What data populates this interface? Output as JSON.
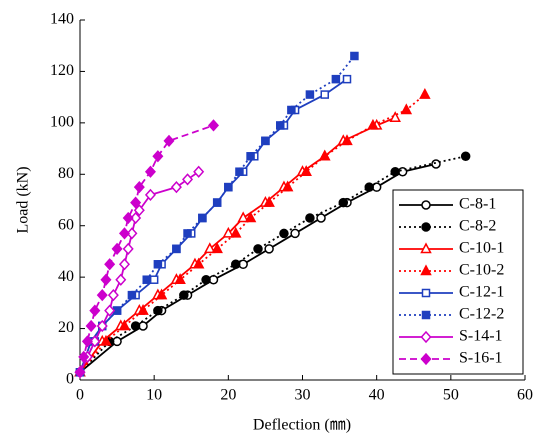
{
  "chart_data": {
    "type": "line",
    "xlabel": "Deflection (㎜)",
    "ylabel": "Load (kN)",
    "xlim": [
      0,
      60
    ],
    "xticks": [
      0,
      10,
      20,
      30,
      40,
      50,
      60
    ],
    "ylim": [
      0,
      140
    ],
    "yticks": [
      0,
      20,
      40,
      60,
      80,
      100,
      120,
      140
    ],
    "legend": "lower right",
    "series": [
      {
        "name": "C-8-1",
        "color": "#000000",
        "dash": "solid",
        "marker": "circle",
        "filled": false,
        "x": [
          0,
          5,
          8.5,
          11,
          14.5,
          18,
          22,
          25.5,
          29,
          32.5,
          36,
          40,
          43.5,
          48
        ],
        "values": [
          3,
          15,
          21,
          27,
          33,
          39,
          45,
          51,
          57,
          63,
          69,
          75,
          81,
          84
        ]
      },
      {
        "name": "C-8-2",
        "color": "#000000",
        "dash": "dotted",
        "marker": "circle",
        "filled": true,
        "x": [
          0,
          4,
          7.5,
          10.5,
          14,
          17,
          21,
          24,
          27.5,
          31,
          35.5,
          39,
          42.5,
          52
        ],
        "values": [
          3,
          15,
          21,
          27,
          33,
          39,
          45,
          51,
          57,
          63,
          69,
          75,
          81,
          87
        ]
      },
      {
        "name": "C-10-1",
        "color": "#ff0000",
        "dash": "solid",
        "marker": "triangle",
        "filled": false,
        "x": [
          0,
          3,
          5.5,
          8,
          10.5,
          13,
          15.5,
          17.5,
          20,
          22,
          25,
          27.5,
          30,
          33,
          35.5,
          40,
          42.5
        ],
        "values": [
          3,
          15,
          21,
          27,
          33,
          39,
          45,
          51,
          57,
          63,
          69,
          75,
          81,
          87,
          93,
          99,
          102
        ]
      },
      {
        "name": "C-10-2",
        "color": "#ff0000",
        "dash": "dotted",
        "marker": "triangle",
        "filled": true,
        "x": [
          0,
          3.5,
          6,
          8.5,
          11,
          13.5,
          16,
          18.5,
          21,
          23,
          25.5,
          28,
          30.5,
          33,
          36,
          39.5,
          44,
          46.5
        ],
        "values": [
          3,
          15,
          21,
          27,
          33,
          39,
          45,
          51,
          57,
          63,
          69,
          75,
          81,
          87,
          93,
          99,
          105,
          111
        ]
      },
      {
        "name": "C-12-1",
        "color": "#1f3fbf",
        "dash": "solid",
        "marker": "square",
        "filled": false,
        "x": [
          0,
          1.5,
          3,
          5,
          7.5,
          10,
          11,
          13,
          15,
          16.5,
          18.5,
          20,
          22,
          23.5,
          25,
          27.5,
          29,
          33,
          36
        ],
        "values": [
          3,
          15,
          21,
          27,
          33,
          39,
          45,
          51,
          57,
          63,
          69,
          75,
          81,
          87,
          93,
          99,
          105,
          111,
          117
        ]
      },
      {
        "name": "C-12-2",
        "color": "#1f3fbf",
        "dash": "dotted",
        "marker": "square",
        "filled": true,
        "x": [
          0,
          2,
          3,
          5,
          7,
          9,
          10.5,
          13,
          14.5,
          16.5,
          18.5,
          20,
          21.5,
          23,
          25,
          27,
          28.5,
          31,
          34.5,
          37
        ],
        "values": [
          3,
          15,
          21,
          27,
          33,
          39,
          45,
          51,
          57,
          63,
          69,
          75,
          81,
          87,
          93,
          99,
          105,
          111,
          117,
          126
        ]
      },
      {
        "name": "S-14-1",
        "color": "#cc00cc",
        "dash": "solid",
        "marker": "diamond",
        "filled": false,
        "x": [
          0,
          1,
          2,
          3,
          4,
          4.5,
          5.5,
          6,
          6.5,
          7,
          7.5,
          8,
          9.5,
          13,
          14.5,
          16
        ],
        "values": [
          3,
          9,
          15,
          21,
          27,
          33,
          39,
          45,
          51,
          57,
          63,
          66,
          72,
          75,
          78,
          81
        ]
      },
      {
        "name": "S-16-1",
        "color": "#cc00cc",
        "dash": "dashed",
        "marker": "diamond",
        "filled": true,
        "x": [
          0,
          0.5,
          1,
          1.5,
          2,
          3,
          3.5,
          4,
          5,
          6,
          6.5,
          7.5,
          8,
          9.5,
          10.5,
          12,
          18
        ],
        "values": [
          3,
          9,
          15,
          21,
          27,
          33,
          39,
          45,
          51,
          57,
          63,
          69,
          75,
          81,
          87,
          93,
          99
        ]
      }
    ]
  }
}
